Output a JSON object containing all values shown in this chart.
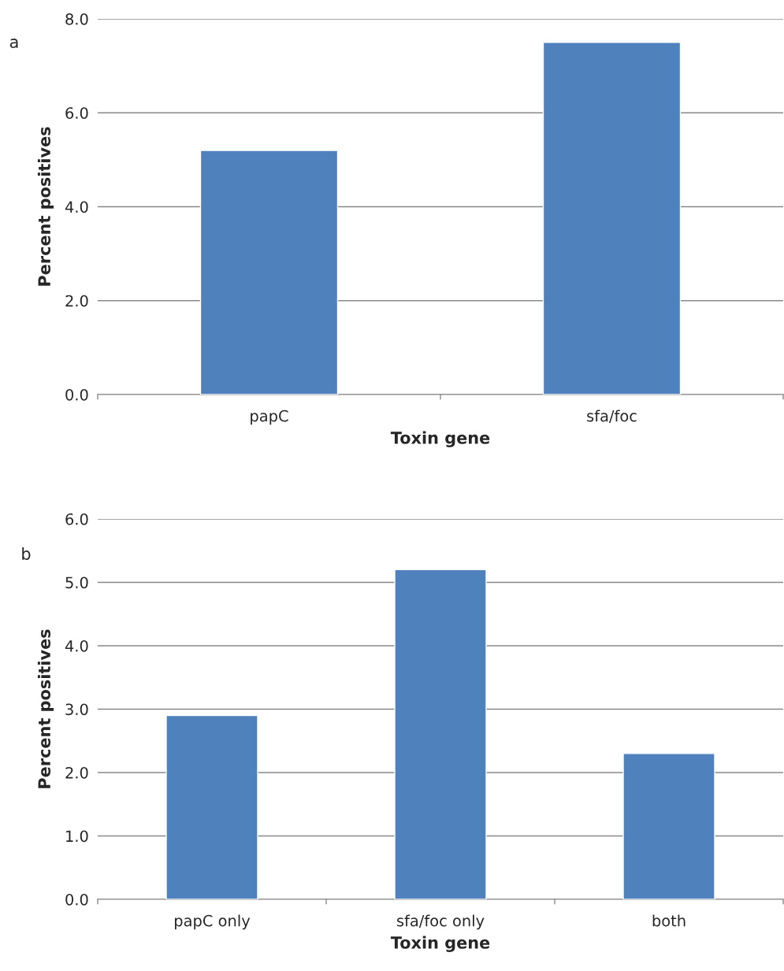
{
  "chart_data": [
    {
      "type": "bar",
      "xlabel": "Toxin gene",
      "ylabel": "Percent positives",
      "annotations": [
        "a"
      ],
      "categories": [
        "papC",
        "sfa/foc"
      ],
      "values": [
        5.2,
        7.5
      ],
      "color": "#4f81bd",
      "ylim": [
        0,
        8
      ],
      "yticks": [
        {
          "value": 0,
          "label": "0.0"
        },
        {
          "value": 2,
          "label": "2.0"
        },
        {
          "value": 4,
          "label": "4.0"
        },
        {
          "value": 6,
          "label": "6.0"
        },
        {
          "value": 8,
          "label": "8.0"
        }
      ],
      "grid": "y",
      "legend": false
    },
    {
      "type": "bar",
      "xlabel": "Toxin gene",
      "ylabel": "Percent positives",
      "annotations": [
        "b"
      ],
      "categories": [
        "papC only",
        "sfa/foc only",
        "both"
      ],
      "values": [
        2.9,
        5.2,
        2.3
      ],
      "color": "#4f81bd",
      "ylim": [
        0,
        6
      ],
      "yticks": [
        {
          "value": 0,
          "label": "0.0"
        },
        {
          "value": 1,
          "label": "1.0"
        },
        {
          "value": 2,
          "label": "2.0"
        },
        {
          "value": 3,
          "label": "3.0"
        },
        {
          "value": 4,
          "label": "4.0"
        },
        {
          "value": 5,
          "label": "5.0"
        },
        {
          "value": 6,
          "label": "6.0"
        }
      ],
      "grid": "y",
      "legend": false
    }
  ]
}
